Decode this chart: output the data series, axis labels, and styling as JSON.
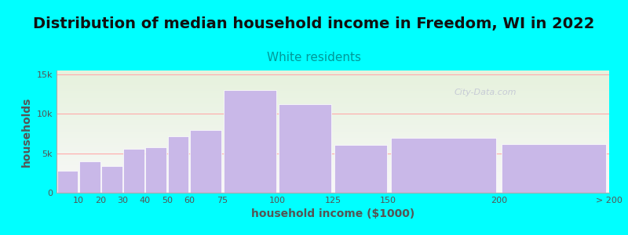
{
  "title": "Distribution of median household income in Freedom, WI in 2022",
  "subtitle": "White residents",
  "xlabel": "household income ($1000)",
  "ylabel": "households",
  "bar_edges": [
    0,
    10,
    20,
    30,
    40,
    50,
    60,
    75,
    100,
    125,
    150,
    200,
    250
  ],
  "bar_labels": [
    "10",
    "20",
    "30",
    "40",
    "50",
    "60",
    "75",
    "100",
    "125",
    "150",
    "200",
    "> 200"
  ],
  "bar_values": [
    2800,
    4000,
    3400,
    5600,
    5800,
    7200,
    7900,
    13000,
    11200,
    6100,
    7000,
    6200
  ],
  "bar_color": "#c9b8e8",
  "bar_edgecolor": "#ffffff",
  "background_color": "#00ffff",
  "plot_bg_top": "#e6f2dd",
  "plot_bg_bottom": "#f8f8f8",
  "title_fontsize": 14,
  "title_color": "#111111",
  "subtitle_fontsize": 11,
  "subtitle_color": "#009999",
  "axis_label_fontsize": 10,
  "axis_label_color": "#555555",
  "tick_fontsize": 8,
  "tick_color": "#555555",
  "ytick_labels": [
    "0",
    "5k",
    "10k",
    "15k"
  ],
  "ytick_values": [
    0,
    5000,
    10000,
    15000
  ],
  "ylim": [
    0,
    15500
  ],
  "xlim": [
    0,
    250
  ],
  "grid_color": "#ffaaaa",
  "grid_linewidth": 0.8,
  "watermark_text": "City-Data.com",
  "watermark_color": "#aaaacc",
  "watermark_alpha": 0.55
}
